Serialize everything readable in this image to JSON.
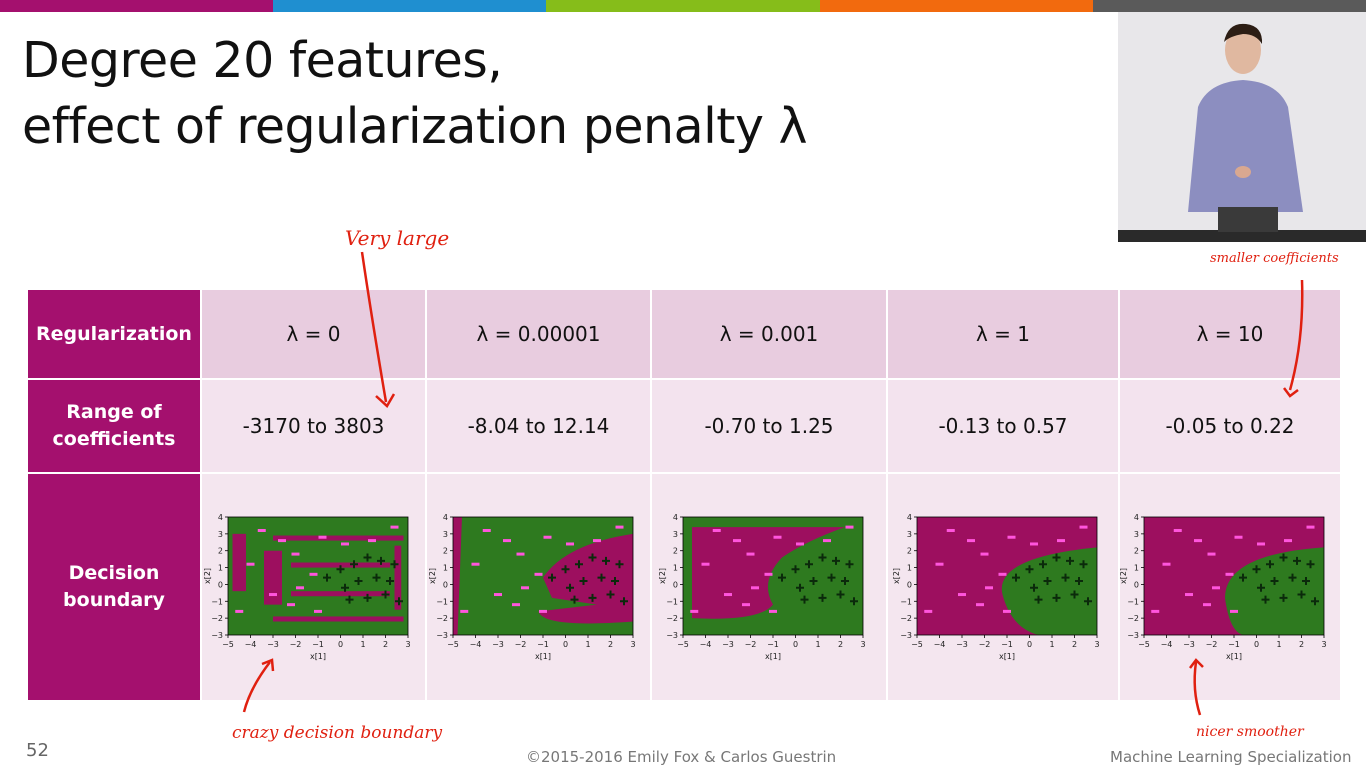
{
  "colors": {
    "bar": [
      "#a4106e",
      "#1f8fd0",
      "#86bd1a",
      "#f26a0e",
      "#5a5a5a"
    ],
    "header_bg": "#a4106e",
    "neg_region": "#9d0f5f",
    "pos_region": "#2e7a1f",
    "annotation": "#e02010"
  },
  "slide": {
    "title_line1": "Degree 20 features,",
    "title_line2": "effect of regularization penalty λ",
    "page_number": "52",
    "copyright": "©2015-2016 Emily Fox & Carlos Guestrin",
    "course": "Machine Learning Specialization"
  },
  "table": {
    "row_headers": {
      "regularization": "Regularization",
      "range": "Range of coefficients",
      "boundary": "Decision boundary"
    },
    "columns": [
      {
        "lambda": "λ = 0",
        "range": "-3170 to 3803"
      },
      {
        "lambda": "λ = 0.00001",
        "range": "-8.04 to 12.14"
      },
      {
        "lambda": "λ = 0.001",
        "range": "-0.70 to 1.25"
      },
      {
        "lambda": "λ = 1",
        "range": "-0.13 to 0.57"
      },
      {
        "lambda": "λ = 10",
        "range": "-0.05 to 0.22"
      }
    ]
  },
  "plots": {
    "xlabel": "x[1]",
    "ylabel": "x[2]",
    "xticks": [
      "−5",
      "−4",
      "−3",
      "−2",
      "−1",
      "0",
      "1",
      "2",
      "3"
    ],
    "yticks": [
      "4",
      "3",
      "2",
      "1",
      "0",
      "−1",
      "−2",
      "−3"
    ]
  },
  "annotations": {
    "very_large": "Very large",
    "crazy": "crazy decision boundary",
    "smaller": "smaller coefficients",
    "nicer": "nicer smoother"
  }
}
